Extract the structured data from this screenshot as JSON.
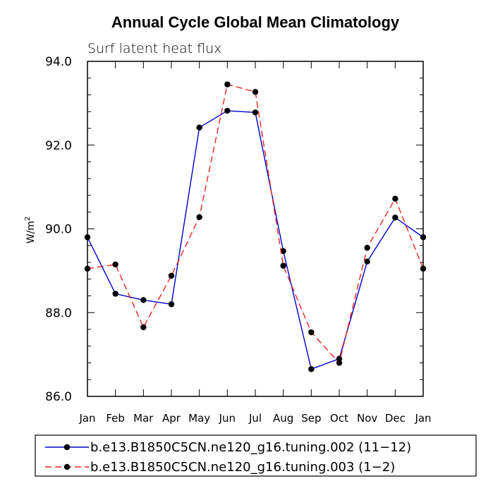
{
  "chart_data": {
    "type": "line",
    "title": "Annual Cycle Global Mean Climatology",
    "subtitle": "Surf latent heat flux",
    "ylabel": "W/m",
    "ylabel_sup": "2",
    "xlabel": "",
    "categories": [
      "Jan",
      "Feb",
      "Mar",
      "Apr",
      "May",
      "Jun",
      "Jul",
      "Aug",
      "Sep",
      "Oct",
      "Nov",
      "Dec",
      "Jan"
    ],
    "ylim": [
      86.0,
      94.0
    ],
    "yticks": [
      86.0,
      88.0,
      90.0,
      92.0,
      94.0
    ],
    "ytick_labels": [
      "86.0",
      "88.0",
      "90.0",
      "92.0",
      "94.0"
    ],
    "series": [
      {
        "name": "b.e13.B1850C5CN.ne120_g16.tuning.002 (11−12)",
        "color": "#0000cc",
        "dash": "solid",
        "values": [
          89.8,
          88.45,
          88.3,
          88.2,
          92.42,
          92.82,
          92.78,
          89.47,
          86.65,
          86.9,
          89.22,
          90.27,
          89.8
        ]
      },
      {
        "name": "b.e13.B1850C5CN.ne120_g16.tuning.003 (1−2)",
        "color": "#ee2222",
        "dash": "dashed",
        "values": [
          89.05,
          89.15,
          87.65,
          88.88,
          90.28,
          93.45,
          93.27,
          89.12,
          87.53,
          86.8,
          89.55,
          90.72,
          89.05
        ]
      }
    ]
  }
}
